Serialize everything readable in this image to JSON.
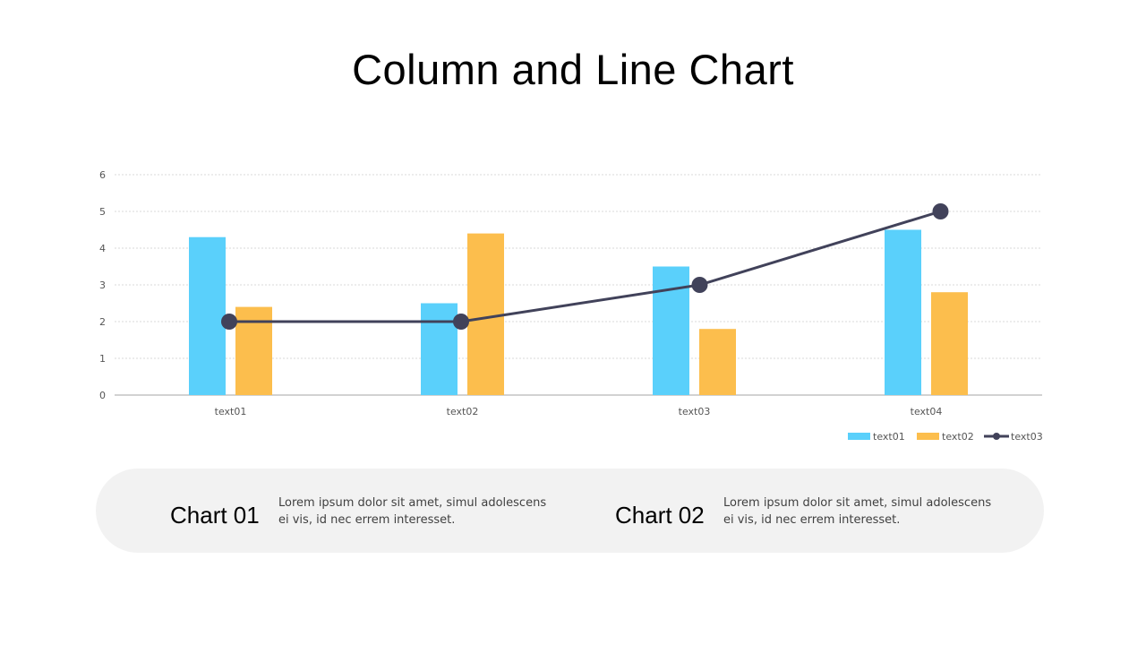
{
  "title": "Column and Line Chart",
  "colors": {
    "text01": "#5ad0fb",
    "text02": "#fcbe4d",
    "text03": "#41425a",
    "grid": "#d9d9d9",
    "axis": "#a6a6a6"
  },
  "chart_data": {
    "type": "bar",
    "categories": [
      "text01",
      "text02",
      "text03",
      "text04"
    ],
    "series": [
      {
        "name": "text01",
        "type": "bar",
        "values": [
          4.3,
          2.5,
          3.5,
          4.5
        ]
      },
      {
        "name": "text02",
        "type": "bar",
        "values": [
          2.4,
          4.4,
          1.8,
          2.8
        ]
      },
      {
        "name": "text03",
        "type": "line",
        "values": [
          2,
          2,
          3,
          5
        ]
      }
    ],
    "ylim": [
      0,
      6
    ],
    "yticks": [
      "0",
      "1",
      "2",
      "3",
      "4",
      "5",
      "6"
    ],
    "grid": true,
    "legend": "bottom-right"
  },
  "cards": [
    {
      "title": "Chart 01",
      "text": "Lorem ipsum dolor sit amet, simul adolescens ei vis, id nec errem interesset."
    },
    {
      "title": "Chart 02",
      "text": "Lorem ipsum dolor sit amet, simul adolescens ei vis, id nec errem interesset."
    }
  ]
}
